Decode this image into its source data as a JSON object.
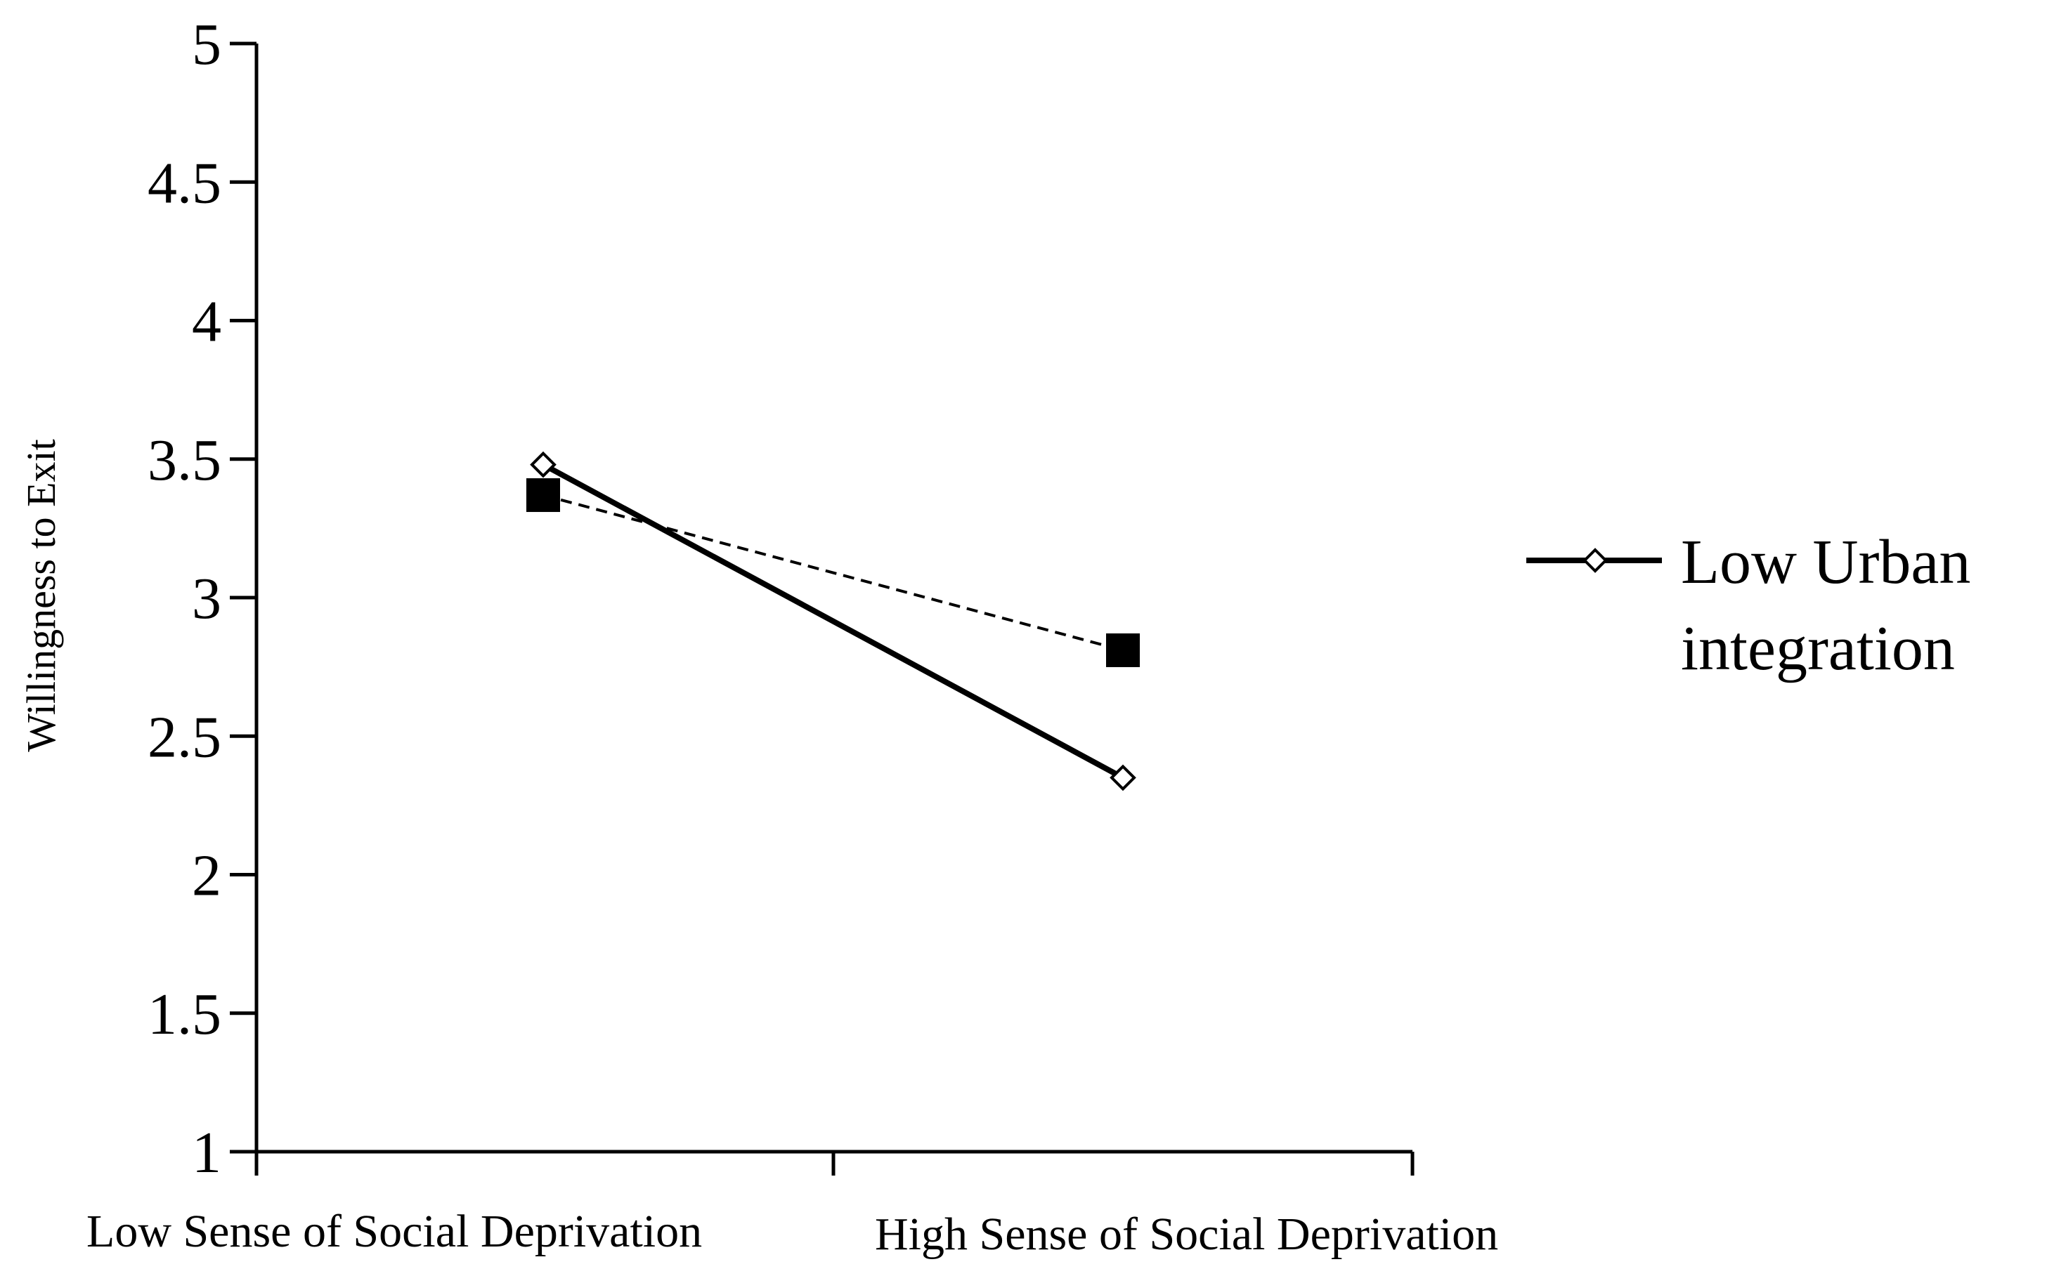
{
  "chart_data": {
    "type": "line",
    "categories": [
      "Low Sense of Social Deprivation",
      "High Sense of Social Deprivation"
    ],
    "ylabel": "Willingness to Exit",
    "xlabel": "",
    "ylim": [
      1,
      5
    ],
    "yticks": [
      "1",
      "1.5",
      "2",
      "2.5",
      "3",
      "3.5",
      "4",
      "4.5",
      "5"
    ],
    "grid": false,
    "legend_position": "right",
    "series": [
      {
        "name": "Low Urban integration",
        "legend_lines": [
          "Low Urban",
          "integration"
        ],
        "values": [
          3.48,
          2.35
        ],
        "line_style": "solid",
        "marker": "open-diamond",
        "color": "#000000"
      },
      {
        "values": [
          3.37,
          2.81
        ],
        "line_style": "dashed",
        "marker": "filled-square",
        "color": "#000000"
      }
    ]
  }
}
